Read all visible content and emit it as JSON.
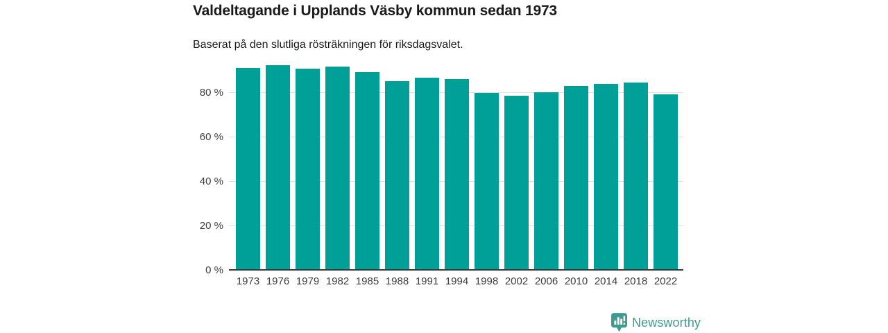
{
  "header": {
    "title": "Valdeltagande i Upplands Väsby kommun sedan 1973",
    "subtitle": "Baserat på den slutliga rösträkningen för riksdagsvalet."
  },
  "chart_data": {
    "type": "bar",
    "title": "Valdeltagande i Upplands Väsby kommun sedan 1973",
    "subtitle": "Baserat på den slutliga rösträkningen för riksdagsvalet.",
    "categories": [
      "1973",
      "1976",
      "1979",
      "1982",
      "1985",
      "1988",
      "1991",
      "1994",
      "1998",
      "2002",
      "2006",
      "2010",
      "2014",
      "2018",
      "2022"
    ],
    "values": [
      91.3,
      92.4,
      90.9,
      92.0,
      89.4,
      85.3,
      86.8,
      86.3,
      79.9,
      78.8,
      80.2,
      83.0,
      84.1,
      84.6,
      79.4
    ],
    "unit": "%",
    "xlabel": "",
    "ylabel": "",
    "ylim": [
      0,
      100
    ],
    "yticks": [
      {
        "value": 0,
        "label": "0 %"
      },
      {
        "value": 20,
        "label": "20 %"
      },
      {
        "value": 40,
        "label": "40 %"
      },
      {
        "value": 60,
        "label": "60 %"
      },
      {
        "value": 80,
        "label": "80 %"
      }
    ],
    "grid": true,
    "legend": "none",
    "bar_color": "#00a099",
    "gridline_color": "#dddddd",
    "axis_line_color": "#3a3a3a",
    "tick_label_color": "#3d3d3d"
  },
  "footer": {
    "brand_label": "Newsworthy",
    "brand_color": "#3f9b8f",
    "brand_icon": "bar-chart-speech-bubble"
  }
}
